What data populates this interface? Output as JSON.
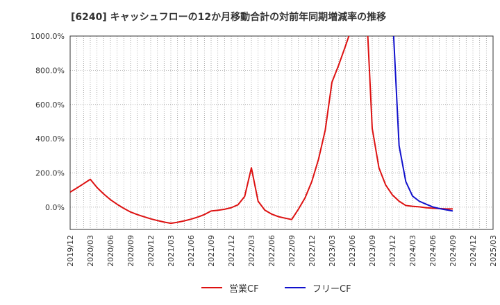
{
  "chart_data": {
    "type": "line",
    "title": "[6240]  キャッシュフローの12か月移動合計の対前年同期増減率の推移",
    "xlabel": "",
    "ylabel": "",
    "ylim": [
      -130,
      1000
    ],
    "yticks": [
      0,
      200,
      400,
      600,
      800,
      1000
    ],
    "ytick_labels": [
      "0.0%",
      "200.0%",
      "400.0%",
      "600.0%",
      "800.0%",
      "1000.0%"
    ],
    "x_ticks": [
      "2019/12",
      "2020/03",
      "2020/06",
      "2020/09",
      "2020/12",
      "2021/03",
      "2021/06",
      "2021/09",
      "2021/12",
      "2022/03",
      "2022/06",
      "2022/09",
      "2022/12",
      "2023/03",
      "2023/06",
      "2023/09",
      "2023/12",
      "2024/03",
      "2024/06",
      "2024/09",
      "2024/12",
      "2025/03"
    ],
    "grid": true,
    "legend_position": "bottom",
    "colors": {
      "series1": "#dd1111",
      "series2": "#1111cc",
      "grid": "#999999",
      "axis": "#333333"
    },
    "x": [
      "2019/12",
      "2020/01",
      "2020/02",
      "2020/03",
      "2020/04",
      "2020/05",
      "2020/06",
      "2020/07",
      "2020/08",
      "2020/09",
      "2020/10",
      "2020/11",
      "2020/12",
      "2021/01",
      "2021/02",
      "2021/03",
      "2021/04",
      "2021/05",
      "2021/06",
      "2021/07",
      "2021/08",
      "2021/09",
      "2021/10",
      "2021/11",
      "2021/12",
      "2022/01",
      "2022/02",
      "2022/03",
      "2022/04",
      "2022/05",
      "2022/06",
      "2022/07",
      "2022/08",
      "2022/09",
      "2022/10",
      "2022/11",
      "2022/12",
      "2023/01",
      "2023/02",
      "2023/03",
      "2023/04",
      "2023/05",
      "2023/06",
      "2023/07",
      "2023/08",
      "2023/09",
      "2023/10",
      "2023/11",
      "2023/12",
      "2024/01",
      "2024/02",
      "2024/03",
      "2024/04",
      "2024/05",
      "2024/06",
      "2024/07",
      "2024/08",
      "2024/09"
    ],
    "series": [
      {
        "name": "営業CF",
        "values": [
          88,
          112,
          137,
          163,
          115,
          77,
          44,
          17,
          -7,
          -28,
          -43,
          -56,
          -68,
          -78,
          -87,
          -94,
          -88,
          -80,
          -70,
          -58,
          -43,
          -22,
          -18,
          -12,
          -3,
          14,
          63,
          230,
          35,
          -17,
          -40,
          -55,
          -64,
          -72,
          -12,
          55,
          150,
          280,
          450,
          730,
          830,
          940,
          1055,
          1200,
          1280,
          460,
          230,
          130,
          72,
          35,
          10,
          5,
          2,
          -3,
          -6,
          -8,
          -10,
          -10
        ]
      },
      {
        "name": "フリーCF",
        "values": [
          null,
          null,
          null,
          null,
          null,
          null,
          null,
          null,
          null,
          null,
          null,
          null,
          null,
          null,
          null,
          null,
          null,
          null,
          null,
          null,
          null,
          null,
          null,
          null,
          null,
          null,
          null,
          null,
          null,
          null,
          null,
          null,
          null,
          null,
          null,
          null,
          null,
          null,
          null,
          null,
          null,
          null,
          null,
          null,
          null,
          null,
          null,
          null,
          1150,
          360,
          150,
          65,
          35,
          18,
          2,
          -8,
          -15,
          -22
        ]
      }
    ]
  }
}
